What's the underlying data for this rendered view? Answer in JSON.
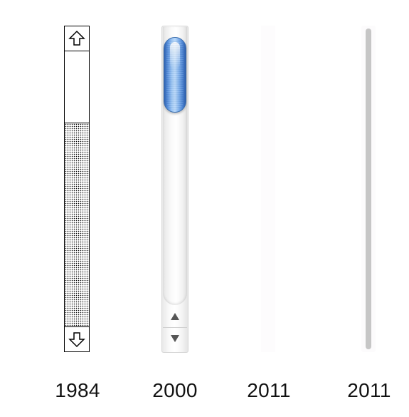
{
  "scrollbars": [
    {
      "year": "1984",
      "style": "classic-mac",
      "thumb_color": "#ffffff",
      "track_pattern": "dotted-black"
    },
    {
      "year": "2000",
      "style": "aqua",
      "thumb_color": "#5d95e0"
    },
    {
      "year": "2011",
      "style": "overlay-hidden"
    },
    {
      "year": "2011",
      "style": "overlay-visible",
      "thumb_color": "#c6c6c6"
    }
  ],
  "icons": {
    "arrow_up_1984": "outline-up-arrow-icon",
    "arrow_down_1984": "outline-down-arrow-icon",
    "arrow_up_2000": "triangle-up-icon",
    "arrow_down_2000": "triangle-down-icon"
  }
}
